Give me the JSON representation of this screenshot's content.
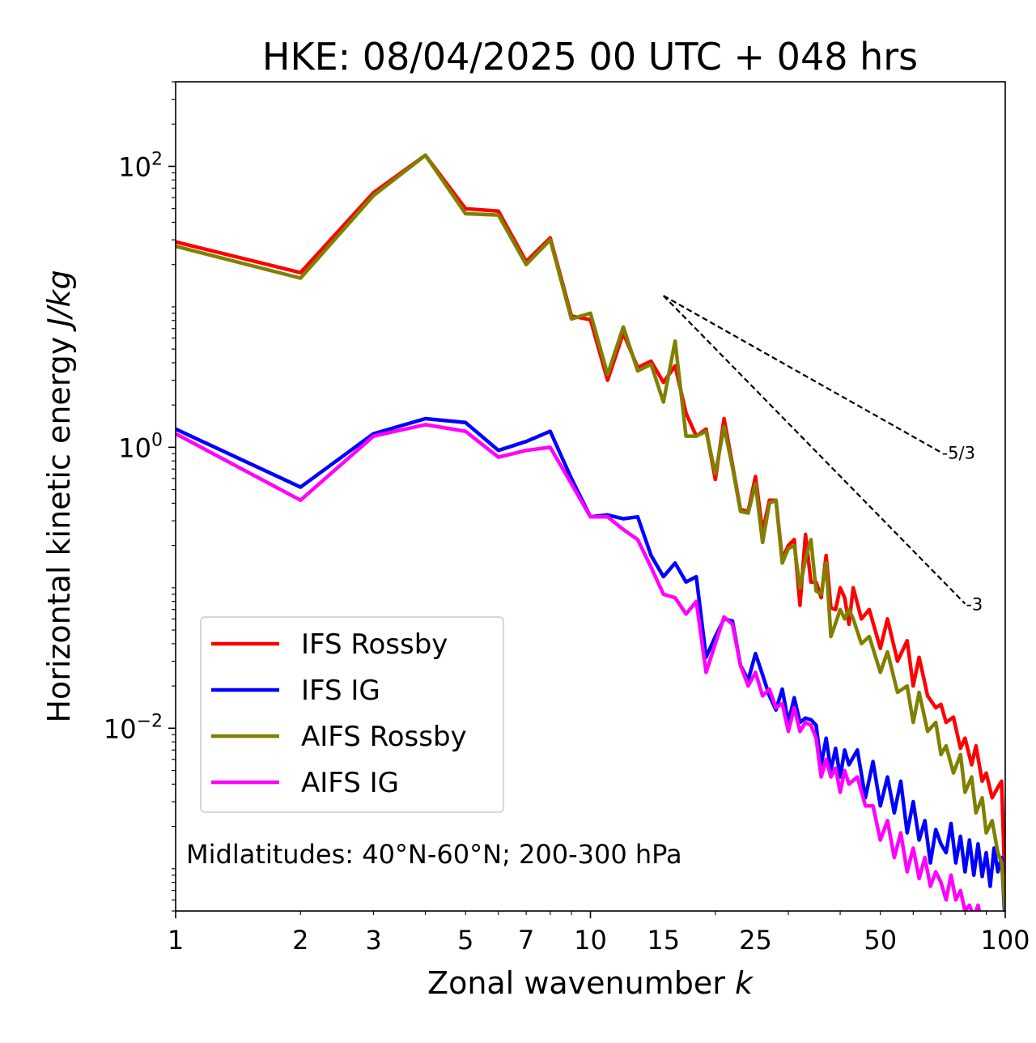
{
  "chart_data": {
    "type": "line",
    "title": "HKE: 08/04/2025 00 UTC + 048 hrs",
    "xlabel": "Zonal wavenumber",
    "xlabel_var": "k",
    "ylabel": "Horizontal kinetic energy",
    "ylabel_unit": "J/kg",
    "xscale": "log",
    "yscale": "log",
    "xlim": [
      1,
      100
    ],
    "ylim": [
      0.0005,
      400
    ],
    "xticks": [
      1,
      2,
      3,
      5,
      7,
      10,
      15,
      25,
      50,
      100
    ],
    "yticks": [
      {
        "value": 100,
        "base": "10",
        "exp": "2"
      },
      {
        "value": 1,
        "base": "10",
        "exp": "0"
      },
      {
        "value": 0.01,
        "base": "10",
        "exp": "−2"
      }
    ],
    "grid": false,
    "legend_position": "lower-left",
    "annotation": "Midlatitudes: 40°N-60°N; 200-300 hPa",
    "reference_slopes": [
      {
        "label": "-5/3",
        "x": [
          15,
          70
        ],
        "y": [
          12.0,
          0.92
        ]
      },
      {
        "label": "-3",
        "x": [
          15,
          80
        ],
        "y": [
          12.0,
          0.077
        ]
      }
    ],
    "series": [
      {
        "name": "IFS Rossby",
        "color": "#ff0000",
        "points": [
          [
            1,
            29
          ],
          [
            2,
            17.5
          ],
          [
            3,
            65
          ],
          [
            4,
            120
          ],
          [
            5,
            50
          ],
          [
            6,
            48
          ],
          [
            7,
            21
          ],
          [
            8,
            31
          ],
          [
            9,
            8.6
          ],
          [
            10,
            8.1
          ],
          [
            11,
            3.0
          ],
          [
            12,
            6.5
          ],
          [
            13,
            3.7
          ],
          [
            14,
            4.1
          ],
          [
            15,
            2.9
          ],
          [
            16,
            3.8
          ],
          [
            17,
            1.75
          ],
          [
            18,
            1.2
          ],
          [
            19,
            1.35
          ],
          [
            20,
            0.59
          ],
          [
            21,
            1.6
          ],
          [
            22,
            0.75
          ],
          [
            23,
            0.36
          ],
          [
            24,
            0.35
          ],
          [
            25,
            0.62
          ],
          [
            26,
            0.25
          ],
          [
            27,
            0.42
          ],
          [
            28,
            0.42
          ],
          [
            29,
            0.16
          ],
          [
            30,
            0.2
          ],
          [
            31,
            0.22
          ],
          [
            32,
            0.075
          ],
          [
            33,
            0.24
          ],
          [
            34,
            0.11
          ],
          [
            35,
            0.11
          ],
          [
            36,
            0.085
          ],
          [
            37,
            0.17
          ],
          [
            38,
            0.072
          ],
          [
            39,
            0.07
          ],
          [
            40,
            0.1
          ],
          [
            41,
            0.085
          ],
          [
            42,
            0.055
          ],
          [
            43,
            0.1
          ],
          [
            45,
            0.06
          ],
          [
            47,
            0.07
          ],
          [
            50,
            0.037
          ],
          [
            52,
            0.06
          ],
          [
            55,
            0.03
          ],
          [
            58,
            0.042
          ],
          [
            60,
            0.02
          ],
          [
            62,
            0.032
          ],
          [
            65,
            0.017
          ],
          [
            68,
            0.014
          ],
          [
            70,
            0.0148
          ],
          [
            72,
            0.011
          ],
          [
            75,
            0.012
          ],
          [
            78,
            0.0072
          ],
          [
            80,
            0.0085
          ],
          [
            83,
            0.0055
          ],
          [
            85,
            0.0075
          ],
          [
            88,
            0.0042
          ],
          [
            90,
            0.0048
          ],
          [
            93,
            0.0032
          ],
          [
            96,
            0.0038
          ],
          [
            98,
            0.0042
          ],
          [
            100,
            0.00065
          ]
        ]
      },
      {
        "name": "IFS IG",
        "color": "#0000ff",
        "points": [
          [
            1,
            1.35
          ],
          [
            2,
            0.52
          ],
          [
            3,
            1.25
          ],
          [
            4,
            1.6
          ],
          [
            5,
            1.5
          ],
          [
            6,
            0.95
          ],
          [
            7,
            1.1
          ],
          [
            8,
            1.3
          ],
          [
            9,
            0.6
          ],
          [
            10,
            0.32
          ],
          [
            11,
            0.33
          ],
          [
            12,
            0.31
          ],
          [
            13,
            0.32
          ],
          [
            14,
            0.17
          ],
          [
            15,
            0.12
          ],
          [
            16,
            0.15
          ],
          [
            17,
            0.11
          ],
          [
            18,
            0.12
          ],
          [
            19,
            0.032
          ],
          [
            20,
            0.045
          ],
          [
            21,
            0.06
          ],
          [
            22,
            0.058
          ],
          [
            23,
            0.028
          ],
          [
            24,
            0.022
          ],
          [
            25,
            0.034
          ],
          [
            26,
            0.024
          ],
          [
            27,
            0.017
          ],
          [
            28,
            0.0135
          ],
          [
            29,
            0.019
          ],
          [
            30,
            0.011
          ],
          [
            31,
            0.0165
          ],
          [
            32,
            0.011
          ],
          [
            33,
            0.0118
          ],
          [
            34,
            0.0115
          ],
          [
            35,
            0.0105
          ],
          [
            36,
            0.0055
          ],
          [
            37,
            0.0085
          ],
          [
            38,
            0.005
          ],
          [
            39,
            0.0072
          ],
          [
            40,
            0.0045
          ],
          [
            41,
            0.007
          ],
          [
            42,
            0.0055
          ],
          [
            44,
            0.007
          ],
          [
            46,
            0.0032
          ],
          [
            48,
            0.0058
          ],
          [
            50,
            0.0028
          ],
          [
            52,
            0.0045
          ],
          [
            54,
            0.0025
          ],
          [
            56,
            0.0042
          ],
          [
            58,
            0.0018
          ],
          [
            60,
            0.003
          ],
          [
            62,
            0.0016
          ],
          [
            64,
            0.0022
          ],
          [
            66,
            0.0011
          ],
          [
            68,
            0.0019
          ],
          [
            70,
            0.0015
          ],
          [
            72,
            0.0013
          ],
          [
            74,
            0.0021
          ],
          [
            76,
            0.0011
          ],
          [
            78,
            0.0017
          ],
          [
            80,
            0.00095
          ],
          [
            82,
            0.0016
          ],
          [
            84,
            0.0009
          ],
          [
            86,
            0.0015
          ],
          [
            88,
            0.00088
          ],
          [
            90,
            0.0013
          ],
          [
            92,
            0.00075
          ],
          [
            94,
            0.0014
          ],
          [
            96,
            0.00095
          ],
          [
            98,
            0.0012
          ],
          [
            100,
            0.0004
          ]
        ]
      },
      {
        "name": "AIFS Rossby",
        "color": "#808000",
        "points": [
          [
            1,
            27
          ],
          [
            2,
            16
          ],
          [
            3,
            62
          ],
          [
            4,
            120
          ],
          [
            5,
            46
          ],
          [
            6,
            45
          ],
          [
            7,
            20
          ],
          [
            8,
            30
          ],
          [
            9,
            8.2
          ],
          [
            10,
            9.0
          ],
          [
            11,
            3.3
          ],
          [
            12,
            7.2
          ],
          [
            13,
            3.5
          ],
          [
            14,
            3.9
          ],
          [
            15,
            2.1
          ],
          [
            16,
            5.7
          ],
          [
            17,
            1.2
          ],
          [
            18,
            1.2
          ],
          [
            19,
            1.3
          ],
          [
            20,
            0.65
          ],
          [
            21,
            1.4
          ],
          [
            22,
            0.72
          ],
          [
            23,
            0.35
          ],
          [
            24,
            0.34
          ],
          [
            25,
            0.55
          ],
          [
            26,
            0.21
          ],
          [
            27,
            0.4
          ],
          [
            28,
            0.42
          ],
          [
            29,
            0.15
          ],
          [
            30,
            0.19
          ],
          [
            31,
            0.2
          ],
          [
            32,
            0.1
          ],
          [
            33,
            0.16
          ],
          [
            34,
            0.22
          ],
          [
            35,
            0.095
          ],
          [
            36,
            0.09
          ],
          [
            37,
            0.15
          ],
          [
            38,
            0.045
          ],
          [
            39,
            0.056
          ],
          [
            40,
            0.07
          ],
          [
            41,
            0.06
          ],
          [
            42,
            0.07
          ],
          [
            43,
            0.06
          ],
          [
            45,
            0.04
          ],
          [
            47,
            0.045
          ],
          [
            50,
            0.025
          ],
          [
            52,
            0.035
          ],
          [
            55,
            0.018
          ],
          [
            58,
            0.02
          ],
          [
            60,
            0.011
          ],
          [
            62,
            0.018
          ],
          [
            65,
            0.0095
          ],
          [
            68,
            0.011
          ],
          [
            70,
            0.0065
          ],
          [
            72,
            0.0075
          ],
          [
            75,
            0.0048
          ],
          [
            78,
            0.0065
          ],
          [
            80,
            0.0035
          ],
          [
            83,
            0.0045
          ],
          [
            85,
            0.0025
          ],
          [
            88,
            0.0032
          ],
          [
            90,
            0.0018
          ],
          [
            93,
            0.0022
          ],
          [
            96,
            0.0013
          ],
          [
            98,
            0.0011
          ],
          [
            100,
            0.0005
          ]
        ]
      },
      {
        "name": "AIFS IG",
        "color": "#ff00ff",
        "points": [
          [
            1,
            1.25
          ],
          [
            2,
            0.42
          ],
          [
            3,
            1.2
          ],
          [
            4,
            1.45
          ],
          [
            5,
            1.3
          ],
          [
            6,
            0.85
          ],
          [
            7,
            0.95
          ],
          [
            8,
            1.0
          ],
          [
            9,
            0.55
          ],
          [
            10,
            0.32
          ],
          [
            11,
            0.32
          ],
          [
            12,
            0.26
          ],
          [
            13,
            0.22
          ],
          [
            14,
            0.14
          ],
          [
            15,
            0.09
          ],
          [
            16,
            0.085
          ],
          [
            17,
            0.065
          ],
          [
            18,
            0.08
          ],
          [
            19,
            0.025
          ],
          [
            20,
            0.04
          ],
          [
            21,
            0.062
          ],
          [
            22,
            0.055
          ],
          [
            23,
            0.028
          ],
          [
            24,
            0.02
          ],
          [
            25,
            0.025
          ],
          [
            26,
            0.017
          ],
          [
            27,
            0.019
          ],
          [
            28,
            0.014
          ],
          [
            29,
            0.015
          ],
          [
            30,
            0.0095
          ],
          [
            31,
            0.014
          ],
          [
            32,
            0.0095
          ],
          [
            33,
            0.011
          ],
          [
            34,
            0.0105
          ],
          [
            35,
            0.0085
          ],
          [
            36,
            0.0045
          ],
          [
            37,
            0.006
          ],
          [
            38,
            0.0045
          ],
          [
            39,
            0.0052
          ],
          [
            40,
            0.0035
          ],
          [
            41,
            0.005
          ],
          [
            42,
            0.004
          ],
          [
            44,
            0.0045
          ],
          [
            46,
            0.0028
          ],
          [
            48,
            0.0028
          ],
          [
            50,
            0.0016
          ],
          [
            52,
            0.0022
          ],
          [
            54,
            0.0012
          ],
          [
            56,
            0.0018
          ],
          [
            58,
            0.00095
          ],
          [
            60,
            0.0014
          ],
          [
            62,
            0.00085
          ],
          [
            64,
            0.0012
          ],
          [
            66,
            0.00075
          ],
          [
            68,
            0.00095
          ],
          [
            70,
            0.0008
          ],
          [
            72,
            0.0006
          ],
          [
            74,
            0.0009
          ],
          [
            76,
            0.0006
          ],
          [
            78,
            0.0007
          ],
          [
            80,
            0.0005
          ],
          [
            82,
            0.00055
          ],
          [
            84,
            0.00045
          ],
          [
            86,
            0.00055
          ],
          [
            88,
            0.0004
          ],
          [
            90,
            0.00045
          ],
          [
            92,
            0.0004
          ]
        ]
      }
    ]
  }
}
